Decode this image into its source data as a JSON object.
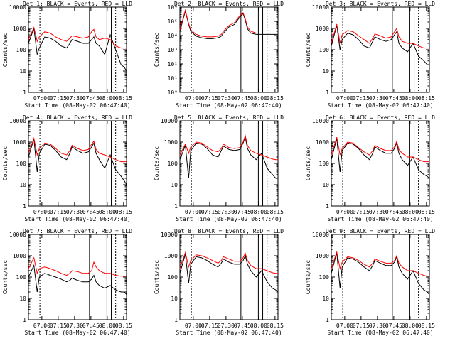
{
  "figure": {
    "line_colors": {
      "events": "#000000",
      "lld": "#ff0000"
    },
    "y_axis_label": "Counts/sec",
    "x_axis_label": "Start Time (08-May-02 06:47:40)",
    "x_tick_labels": [
      "07:00",
      "07:15",
      "07:30",
      "07:45",
      "08:00",
      "08:15"
    ]
  },
  "chart_data": [
    {
      "type": "line",
      "title": "Det 1: BLACK = Events, RED = LLD",
      "ylabel": "Counts/sec",
      "xlabel": "Start Time (08-May-02 06:47:40)",
      "y_scale": "log",
      "ylim": [
        1,
        10000
      ],
      "y_tick_labels": [
        "1",
        "10",
        "100",
        "1000",
        "10000"
      ],
      "x": [
        0,
        5,
        8,
        10,
        15,
        20,
        25,
        30,
        35,
        38,
        40,
        45,
        50,
        55,
        58,
        60,
        62,
        65,
        70,
        75,
        80,
        85,
        88,
        90
      ],
      "series": [
        {
          "name": "Events",
          "color": "#000000",
          "values": [
            200,
            1000,
            60,
            120,
            400,
            350,
            250,
            150,
            120,
            200,
            300,
            250,
            200,
            200,
            300,
            400,
            200,
            150,
            60,
            500,
            100,
            20,
            15,
            10
          ]
        },
        {
          "name": "LLD",
          "color": "#ff0000",
          "values": [
            300,
            1100,
            250,
            400,
            700,
            600,
            400,
            300,
            250,
            350,
            450,
            400,
            350,
            400,
            700,
            900,
            400,
            300,
            350,
            300,
            150,
            120,
            120,
            120
          ]
        }
      ]
    },
    {
      "type": "line",
      "title": "Det 2: BLACK = Events, RED = LLD",
      "ylabel": "Counts/sec",
      "xlabel": "Start Time (08-May-02 06:47:40)",
      "y_scale": "log",
      "ylim": [
        1,
        1000000
      ],
      "y_tick_labels": [
        "10⁰",
        "10¹",
        "10²",
        "10³",
        "10⁴",
        "10⁵",
        "10⁶"
      ],
      "x": [
        0,
        5,
        8,
        10,
        15,
        20,
        25,
        30,
        35,
        38,
        40,
        45,
        50,
        55,
        58,
        60,
        62,
        65,
        70,
        75,
        80,
        85,
        88,
        90
      ],
      "series": [
        {
          "name": "Events",
          "color": "#000000",
          "values": [
            20000,
            500000,
            60000,
            20000,
            9000,
            7000,
            6000,
            6000,
            7000,
            9000,
            15000,
            40000,
            60000,
            200000,
            350000,
            120000,
            30000,
            15000,
            12000,
            12000,
            12000,
            12000,
            12000,
            12000
          ]
        },
        {
          "name": "LLD",
          "color": "#ff0000",
          "values": [
            25000,
            600000,
            70000,
            25000,
            12000,
            9000,
            8000,
            8000,
            9000,
            12000,
            20000,
            50000,
            80000,
            250000,
            400000,
            150000,
            40000,
            20000,
            15000,
            15000,
            15000,
            15000,
            15000,
            15000
          ]
        }
      ]
    },
    {
      "type": "line",
      "title": "Det 3: BLACK = Events, RED = LLD",
      "ylabel": "Counts/sec",
      "xlabel": "Start Time (08-May-02 06:47:40)",
      "y_scale": "log",
      "ylim": [
        1,
        10000
      ],
      "y_tick_labels": [
        "1",
        "10",
        "100",
        "1000",
        "10000"
      ],
      "x": [
        0,
        5,
        8,
        10,
        15,
        20,
        25,
        30,
        35,
        38,
        40,
        45,
        50,
        55,
        58,
        60,
        62,
        65,
        70,
        75,
        80,
        85,
        88,
        90
      ],
      "series": [
        {
          "name": "Events",
          "color": "#000000",
          "values": [
            150,
            1400,
            100,
            300,
            600,
            500,
            300,
            150,
            120,
            250,
            400,
            300,
            250,
            300,
            500,
            700,
            200,
            120,
            80,
            200,
            50,
            30,
            20,
            20
          ]
        },
        {
          "name": "LLD",
          "color": "#ff0000",
          "values": [
            200,
            1600,
            200,
            500,
            800,
            700,
            450,
            300,
            200,
            350,
            550,
            450,
            350,
            400,
            700,
            1000,
            400,
            250,
            200,
            200,
            150,
            120,
            120,
            120
          ]
        }
      ]
    },
    {
      "type": "line",
      "title": "Det 4: BLACK = Events, RED = LLD",
      "ylabel": "Counts/sec",
      "xlabel": "Start Time (08-May-02 06:47:40)",
      "y_scale": "log",
      "ylim": [
        1,
        10000
      ],
      "y_tick_labels": [
        "1",
        "10",
        "100",
        "1000",
        "10000"
      ],
      "x": [
        0,
        5,
        8,
        10,
        15,
        20,
        25,
        30,
        35,
        38,
        40,
        45,
        50,
        55,
        58,
        60,
        62,
        65,
        70,
        75,
        80,
        85,
        88,
        90
      ],
      "series": [
        {
          "name": "Events",
          "color": "#000000",
          "values": [
            200,
            1400,
            40,
            300,
            800,
            700,
            400,
            200,
            150,
            300,
            600,
            400,
            300,
            350,
            600,
            900,
            300,
            150,
            60,
            250,
            50,
            25,
            15,
            10
          ]
        },
        {
          "name": "LLD",
          "color": "#ff0000",
          "values": [
            300,
            1500,
            250,
            500,
            900,
            800,
            500,
            300,
            250,
            400,
            700,
            500,
            400,
            450,
            800,
            1100,
            450,
            300,
            250,
            200,
            150,
            120,
            120,
            120
          ]
        }
      ]
    },
    {
      "type": "line",
      "title": "Det 5: BLACK = Events, RED = LLD",
      "ylabel": "Counts/sec",
      "xlabel": "Start Time (08-May-02 06:47:40)",
      "y_scale": "log",
      "ylim": [
        1,
        10000
      ],
      "y_tick_labels": [
        "1",
        "10",
        "100",
        "1000",
        "10000"
      ],
      "x": [
        0,
        5,
        8,
        10,
        15,
        20,
        25,
        30,
        35,
        38,
        40,
        45,
        50,
        55,
        58,
        60,
        62,
        65,
        70,
        75,
        80,
        85,
        88,
        90
      ],
      "series": [
        {
          "name": "Events",
          "color": "#000000",
          "values": [
            150,
            700,
            20,
            400,
            900,
            800,
            500,
            250,
            200,
            400,
            650,
            450,
            400,
            450,
            900,
            1700,
            500,
            250,
            150,
            300,
            60,
            30,
            20,
            20
          ]
        },
        {
          "name": "LLD",
          "color": "#ff0000",
          "values": [
            250,
            800,
            300,
            600,
            1000,
            900,
            600,
            400,
            350,
            500,
            800,
            550,
            500,
            550,
            1000,
            2000,
            700,
            400,
            300,
            250,
            200,
            160,
            150,
            150
          ]
        }
      ]
    },
    {
      "type": "line",
      "title": "Det 6: BLACK = Events, RED = LLD",
      "ylabel": "Counts/sec",
      "xlabel": "Start Time (08-May-02 06:47:40)",
      "y_scale": "log",
      "ylim": [
        1,
        10000
      ],
      "y_tick_labels": [
        "1",
        "10",
        "100",
        "1000",
        "10000"
      ],
      "x": [
        0,
        5,
        8,
        10,
        15,
        20,
        25,
        30,
        35,
        38,
        40,
        45,
        50,
        55,
        58,
        60,
        62,
        65,
        70,
        75,
        80,
        85,
        88,
        90
      ],
      "series": [
        {
          "name": "Events",
          "color": "#000000",
          "values": [
            150,
            1500,
            40,
            400,
            900,
            800,
            500,
            250,
            150,
            300,
            600,
            400,
            300,
            300,
            500,
            900,
            300,
            150,
            80,
            200,
            50,
            30,
            25,
            20
          ]
        },
        {
          "name": "LLD",
          "color": "#ff0000",
          "values": [
            250,
            1700,
            250,
            500,
            1000,
            900,
            550,
            350,
            250,
            400,
            700,
            500,
            400,
            400,
            600,
            1100,
            450,
            300,
            200,
            200,
            150,
            120,
            120,
            120
          ]
        }
      ]
    },
    {
      "type": "line",
      "title": "Det 7: BLACK = Events, RED = LLD",
      "ylabel": "Counts/sec",
      "xlabel": "Start Time (08-May-02 06:47:40)",
      "y_scale": "log",
      "ylim": [
        1,
        10000
      ],
      "y_tick_labels": [
        "1",
        "10",
        "100",
        "1000",
        "10000"
      ],
      "x": [
        0,
        5,
        8,
        10,
        15,
        20,
        25,
        30,
        35,
        38,
        40,
        45,
        50,
        55,
        58,
        60,
        62,
        65,
        70,
        75,
        80,
        85,
        88,
        90
      ],
      "series": [
        {
          "name": "Events",
          "color": "#000000",
          "values": [
            100,
            350,
            20,
            100,
            150,
            120,
            100,
            80,
            60,
            70,
            90,
            70,
            60,
            60,
            80,
            120,
            60,
            40,
            30,
            40,
            25,
            20,
            20,
            15
          ]
        },
        {
          "name": "LLD",
          "color": "#ff0000",
          "values": [
            250,
            800,
            150,
            250,
            300,
            250,
            200,
            150,
            120,
            150,
            200,
            180,
            150,
            150,
            200,
            500,
            300,
            200,
            150,
            150,
            120,
            110,
            110,
            110
          ]
        }
      ]
    },
    {
      "type": "line",
      "title": "Det 8: BLACK = Events, RED = LLD",
      "ylabel": "Counts/sec",
      "xlabel": "Start Time (08-May-02 06:47:40)",
      "y_scale": "log",
      "ylim": [
        1,
        10000
      ],
      "y_tick_labels": [
        "1",
        "10",
        "100",
        "1000",
        "10000"
      ],
      "x": [
        0,
        5,
        8,
        10,
        15,
        20,
        25,
        30,
        35,
        38,
        40,
        45,
        50,
        55,
        58,
        60,
        62,
        65,
        70,
        75,
        80,
        85,
        88,
        90
      ],
      "series": [
        {
          "name": "Events",
          "color": "#000000",
          "values": [
            150,
            1200,
            50,
            400,
            900,
            800,
            600,
            400,
            300,
            450,
            700,
            500,
            400,
            400,
            600,
            1000,
            400,
            200,
            100,
            200,
            60,
            30,
            25,
            20
          ]
        },
        {
          "name": "LLD",
          "color": "#ff0000",
          "values": [
            250,
            1400,
            300,
            600,
            1100,
            1000,
            800,
            600,
            450,
            600,
            900,
            700,
            550,
            550,
            800,
            1300,
            600,
            350,
            250,
            250,
            200,
            160,
            150,
            150
          ]
        }
      ]
    },
    {
      "type": "line",
      "title": "Det 9: BLACK = Events, RED = LLD",
      "ylabel": "Counts/sec",
      "xlabel": "Start Time (08-May-02 06:47:40)",
      "y_scale": "log",
      "ylim": [
        1,
        10000
      ],
      "y_tick_labels": [
        "1",
        "10",
        "100",
        "1000",
        "10000"
      ],
      "x": [
        0,
        5,
        8,
        10,
        15,
        20,
        25,
        30,
        35,
        38,
        40,
        45,
        50,
        55,
        58,
        60,
        62,
        65,
        70,
        75,
        80,
        85,
        88,
        90
      ],
      "series": [
        {
          "name": "Events",
          "color": "#000000",
          "values": [
            150,
            1400,
            30,
            300,
            800,
            700,
            500,
            300,
            200,
            350,
            600,
            450,
            350,
            350,
            500,
            900,
            300,
            150,
            80,
            200,
            50,
            25,
            20,
            15
          ]
        },
        {
          "name": "LLD",
          "color": "#ff0000",
          "values": [
            250,
            1500,
            250,
            500,
            900,
            800,
            600,
            400,
            300,
            450,
            700,
            550,
            450,
            450,
            600,
            1000,
            450,
            300,
            200,
            200,
            150,
            120,
            110,
            110
          ]
        }
      ]
    }
  ]
}
